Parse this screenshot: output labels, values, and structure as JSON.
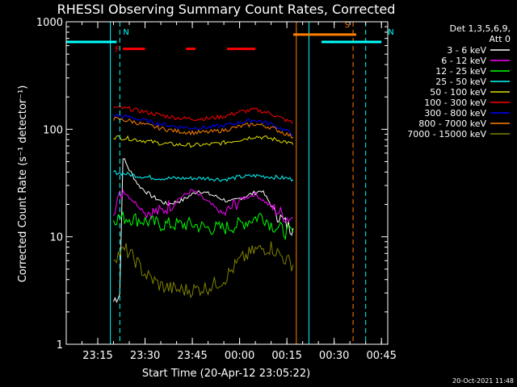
{
  "chart_data": {
    "type": "line",
    "title": "RHESSI Observing Summary Count Rates, Corrected",
    "xlabel": "Start Time (20-Apr-12 23:05:22)",
    "ylabel": "Corrected Count Rate (s⁻¹ detector⁻¹)",
    "y_scale": "log",
    "ylim": [
      1,
      1000
    ],
    "y_ticks": [
      {
        "value": 1,
        "label": "1"
      },
      {
        "value": 10,
        "label": "10"
      },
      {
        "value": 100,
        "label": "100"
      },
      {
        "value": 1000,
        "label": "1000"
      }
    ],
    "x_range": [
      "23:05",
      "00:47"
    ],
    "x_ticks": [
      "23:15",
      "23:30",
      "23:45",
      "00:00",
      "00:15",
      "00:30",
      "00:45"
    ],
    "legend_position": "right",
    "legend_header": [
      "Det 1,3,5,6,9,",
      "Att 0"
    ],
    "footer": "20-Oct-2021 11:48",
    "series": [
      {
        "name": "3 - 6 keV",
        "color": "#ffffff",
        "x": [
          "23:20",
          "23:21",
          "23:22",
          "23:23",
          "23:25",
          "23:28",
          "23:32",
          "23:37",
          "23:42",
          "23:47",
          "23:52",
          "23:57",
          "00:02",
          "00:07",
          "00:12",
          "00:16",
          "00:17"
        ],
        "y": [
          2.5,
          2.8,
          3,
          55,
          42,
          30,
          24,
          20,
          22,
          27,
          24,
          21,
          24,
          27,
          16,
          12,
          12
        ]
      },
      {
        "name": "6 - 12 keV",
        "color": "#ff00ff",
        "x": [
          "23:20",
          "23:23",
          "23:26",
          "23:30",
          "23:35",
          "23:40",
          "23:45",
          "23:50",
          "23:55",
          "00:00",
          "00:05",
          "00:10",
          "00:15",
          "00:17"
        ],
        "y": [
          18,
          27,
          22,
          17,
          17,
          22,
          27,
          21,
          16,
          22,
          25,
          19,
          15,
          15
        ]
      },
      {
        "name": "12 - 25 keV",
        "color": "#00ff00",
        "x": [
          "23:20",
          "23:25",
          "23:30",
          "23:35",
          "23:40",
          "23:45",
          "23:50",
          "23:55",
          "00:00",
          "00:05",
          "00:07",
          "00:10",
          "00:15",
          "00:17"
        ],
        "y": [
          15,
          15,
          14,
          13,
          13,
          13,
          12,
          12,
          13,
          15,
          16,
          13,
          11,
          11
        ]
      },
      {
        "name": "25 - 50 keV",
        "color": "#00ffff",
        "x": [
          "23:20",
          "23:25",
          "23:30",
          "23:35",
          "23:40",
          "23:45",
          "23:50",
          "23:55",
          "00:00",
          "00:05",
          "00:10",
          "00:15",
          "00:17"
        ],
        "y": [
          40,
          38,
          36,
          35,
          35,
          35,
          35,
          34,
          36,
          37,
          36,
          35,
          34
        ]
      },
      {
        "name": "50 - 100 keV",
        "color": "#e0e000",
        "x": [
          "23:20",
          "23:25",
          "23:30",
          "23:35",
          "23:40",
          "23:45",
          "23:50",
          "23:55",
          "00:00",
          "00:05",
          "00:10",
          "00:15",
          "00:17"
        ],
        "y": [
          85,
          82,
          78,
          74,
          72,
          71,
          72,
          75,
          80,
          86,
          82,
          76,
          72
        ]
      },
      {
        "name": "100 - 300 keV",
        "color": "#ff0000",
        "x": [
          "23:20",
          "23:25",
          "23:30",
          "23:35",
          "23:40",
          "23:45",
          "23:50",
          "23:55",
          "00:00",
          "00:05",
          "00:10",
          "00:15",
          "00:17"
        ],
        "y": [
          160,
          155,
          145,
          135,
          128,
          125,
          126,
          132,
          145,
          152,
          140,
          120,
          115
        ]
      },
      {
        "name": "300 - 800 keV",
        "color": "#0000ff",
        "x": [
          "23:20",
          "23:25",
          "23:30",
          "23:35",
          "23:40",
          "23:45",
          "23:50",
          "23:55",
          "00:00",
          "00:05",
          "00:10",
          "00:15",
          "00:17"
        ],
        "y": [
          135,
          130,
          120,
          112,
          106,
          103,
          104,
          108,
          116,
          122,
          112,
          96,
          90
        ]
      },
      {
        "name": "800 - 7000 keV",
        "color": "#ff8000",
        "x": [
          "23:20",
          "23:25",
          "23:30",
          "23:35",
          "23:40",
          "23:45",
          "23:50",
          "23:55",
          "00:00",
          "00:05",
          "00:10",
          "00:15",
          "00:17"
        ],
        "y": [
          125,
          120,
          110,
          102,
          96,
          93,
          94,
          98,
          106,
          112,
          104,
          90,
          84
        ]
      },
      {
        "name": "7000 - 15000 keV",
        "color": "#808000",
        "x": [
          "23:20",
          "23:22",
          "23:24",
          "23:27",
          "23:30",
          "23:35",
          "23:40",
          "23:45",
          "23:50",
          "23:55",
          "00:00",
          "00:05",
          "00:10",
          "00:15",
          "00:17"
        ],
        "y": [
          6.5,
          7,
          7.5,
          6,
          4.5,
          3.5,
          3.2,
          3.2,
          3.4,
          4,
          6,
          7.5,
          8,
          6,
          5.5
        ]
      }
    ],
    "annotations": [
      {
        "label": "N",
        "color": "#00ffff",
        "x_start": "23:05",
        "x_end": "23:21",
        "level": 650
      },
      {
        "label": "N",
        "color": "#00ffff",
        "x_start": "00:26",
        "x_end": "00:45",
        "level": 650
      },
      {
        "label": "S",
        "color": "#ff8000",
        "x_start": "00:17",
        "x_end": "00:37",
        "level": 760
      },
      {
        "label": "F",
        "color": "#ff0000",
        "segments": [
          [
            "23:23",
            "23:30"
          ],
          [
            "23:43",
            "23:46"
          ],
          [
            "23:56",
            "00:05"
          ]
        ],
        "level": 560
      }
    ],
    "vertical_markers": [
      {
        "x": "23:05",
        "color": "#00ffff",
        "style": "solid"
      },
      {
        "x": "23:19",
        "color": "#00ffff",
        "style": "solid"
      },
      {
        "x": "23:22",
        "color": "#00ffff",
        "style": "dashed"
      },
      {
        "x": "00:18",
        "color": "#ff8000",
        "style": "solid"
      },
      {
        "x": "00:22",
        "color": "#00ffff",
        "style": "solid"
      },
      {
        "x": "00:36",
        "color": "#ff8000",
        "style": "dashed"
      },
      {
        "x": "00:40",
        "color": "#00ffff",
        "style": "dashed"
      }
    ]
  }
}
